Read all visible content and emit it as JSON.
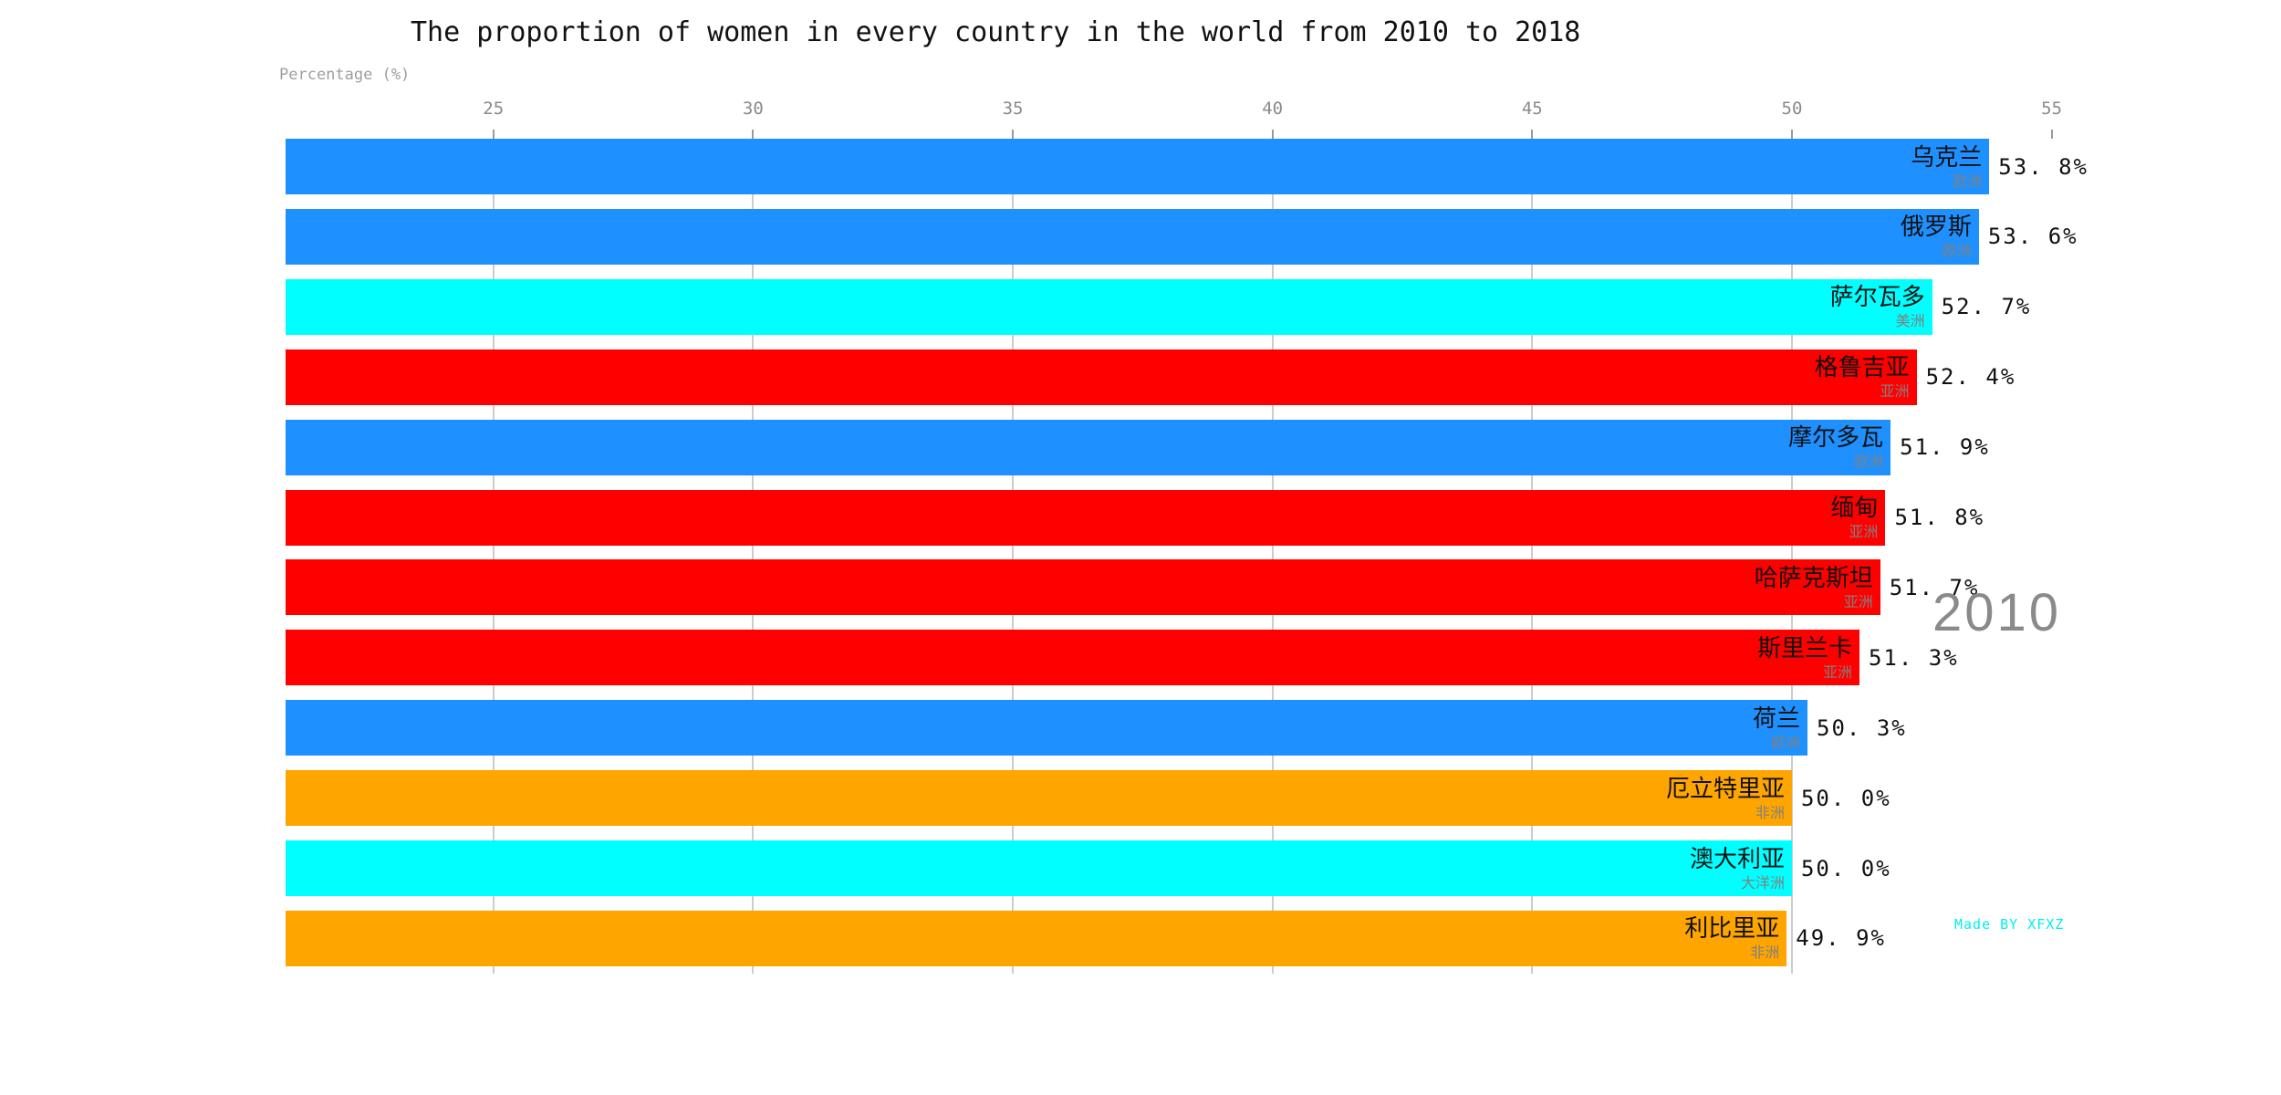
{
  "chart_data": {
    "type": "bar",
    "orientation": "horizontal",
    "title": "The proportion of women in every country in the world from 2010 to 2018",
    "xlabel": "Percentage (%)",
    "year_label": "2010",
    "watermark": "Made BY XFXZ",
    "axis": {
      "min": 21,
      "max": 55.2,
      "ticks": [
        25,
        30,
        35,
        40,
        45,
        50,
        55
      ],
      "gridline_max": 50
    },
    "continent_colors": {
      "欧洲": "#1E90FF",
      "亚洲": "#FF0000",
      "美洲": "#00FFFF",
      "大洋洲": "#00FFFF",
      "非洲": "#FFA500"
    },
    "bars": [
      {
        "country": "乌克兰",
        "continent": "欧洲",
        "value": 53.8,
        "display_label": "53. 8%"
      },
      {
        "country": "俄罗斯",
        "continent": "欧洲",
        "value": 53.6,
        "display_label": "53. 6%"
      },
      {
        "country": "萨尔瓦多",
        "continent": "美洲",
        "value": 52.7,
        "display_label": "52. 7%"
      },
      {
        "country": "格鲁吉亚",
        "continent": "亚洲",
        "value": 52.4,
        "display_label": "52. 4%"
      },
      {
        "country": "摩尔多瓦",
        "continent": "欧洲",
        "value": 51.9,
        "display_label": "51. 9%"
      },
      {
        "country": "缅甸",
        "continent": "亚洲",
        "value": 51.8,
        "display_label": "51. 8%"
      },
      {
        "country": "哈萨克斯坦",
        "continent": "亚洲",
        "value": 51.7,
        "display_label": "51. 7%"
      },
      {
        "country": "斯里兰卡",
        "continent": "亚洲",
        "value": 51.3,
        "display_label": "51. 3%"
      },
      {
        "country": "荷兰",
        "continent": "欧洲",
        "value": 50.3,
        "display_label": "50. 3%"
      },
      {
        "country": "厄立特里亚",
        "continent": "非洲",
        "value": 50.0,
        "display_label": "50. 0%"
      },
      {
        "country": "澳大利亚",
        "continent": "大洋洲",
        "value": 50.0,
        "display_label": "50. 0%"
      },
      {
        "country": "利比里亚",
        "continent": "非洲",
        "value": 49.9,
        "display_label": "49. 9%"
      }
    ]
  }
}
